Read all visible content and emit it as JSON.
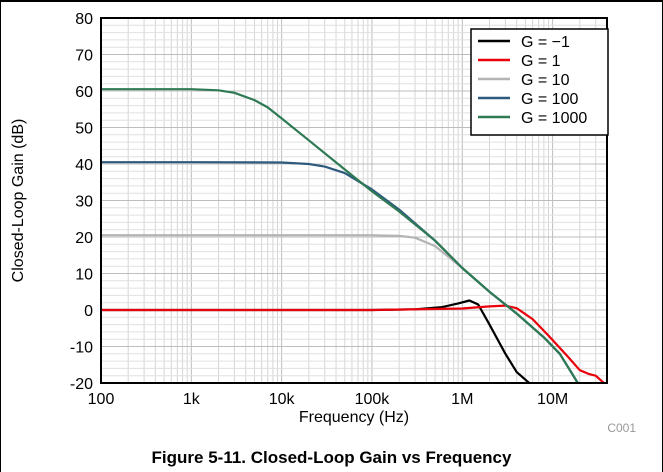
{
  "caption": "Figure 5-11. Closed-Loop Gain vs Frequency",
  "figure_code": "C001",
  "chart_data": {
    "type": "line",
    "xlabel": "Frequency (Hz)",
    "ylabel": "Closed-Loop Gain (dB)",
    "x_scale": "log",
    "xlim": [
      100,
      40000000
    ],
    "ylim": [
      -20,
      80
    ],
    "x_ticks": [
      100,
      1000,
      10000,
      100000,
      1000000,
      10000000
    ],
    "x_tick_labels": [
      "100",
      "1k",
      "10k",
      "100k",
      "1M",
      "10M"
    ],
    "y_ticks": [
      -20,
      -10,
      0,
      10,
      20,
      30,
      40,
      50,
      60,
      70,
      80
    ],
    "y_tick_labels": [
      "-20",
      "-10",
      "0",
      "10",
      "20",
      "30",
      "40",
      "50",
      "60",
      "70",
      "80"
    ],
    "grid": true,
    "legend_position": "top-right",
    "series": [
      {
        "name": "G = −1",
        "color": "#000000",
        "x": [
          100,
          1000,
          10000,
          100000,
          300000,
          600000,
          900000,
          1200000,
          1500000,
          2000000,
          3000000,
          4000000,
          5500000
        ],
        "y": [
          0,
          0,
          0,
          0,
          0.2,
          0.8,
          1.8,
          2.6,
          1.5,
          -4,
          -12,
          -17,
          -20
        ]
      },
      {
        "name": "G = 1",
        "color": "#e8000b",
        "x": [
          100,
          1000,
          10000,
          100000,
          1000000,
          2000000,
          3000000,
          4000000,
          6000000,
          9000000,
          15000000,
          20000000,
          25000000,
          30000000,
          37000000
        ],
        "y": [
          0,
          0,
          0,
          0,
          0.4,
          1.0,
          1.2,
          0.5,
          -2.5,
          -7,
          -13,
          -16.5,
          -17.5,
          -18,
          -20
        ]
      },
      {
        "name": "G = 10",
        "color": "#b4b4b4",
        "x": [
          100,
          1000,
          10000,
          100000,
          200000,
          300000,
          500000,
          1000000,
          2000000,
          4000000,
          8000000,
          12000000,
          16000000,
          19000000
        ],
        "y": [
          20.5,
          20.5,
          20.5,
          20.5,
          20.3,
          19.8,
          17.5,
          11.5,
          5,
          -1,
          -7.5,
          -12,
          -17,
          -20
        ]
      },
      {
        "name": "G = 100",
        "color": "#2d5b7e",
        "x": [
          100,
          1000,
          10000,
          20000,
          30000,
          50000,
          100000,
          200000,
          500000,
          1000000,
          2000000,
          4000000,
          8000000,
          12000000,
          16000000,
          19000000
        ],
        "y": [
          40.5,
          40.5,
          40.4,
          40.0,
          39.3,
          37.5,
          33,
          27.5,
          19,
          11.5,
          5,
          -1,
          -7.5,
          -12,
          -17,
          -20
        ]
      },
      {
        "name": "G = 1000",
        "color": "#2e7a55",
        "x": [
          100,
          1000,
          2000,
          3000,
          5000,
          7000,
          10000,
          20000,
          50000,
          100000,
          200000,
          500000,
          1000000,
          2000000,
          4000000,
          8000000,
          12000000,
          16000000,
          19000000
        ],
        "y": [
          60.5,
          60.5,
          60.2,
          59.5,
          57.5,
          55.5,
          52.5,
          46.5,
          38.5,
          32.5,
          27,
          19,
          11.5,
          5,
          -1,
          -7.5,
          -12,
          -17,
          -20
        ]
      }
    ]
  }
}
